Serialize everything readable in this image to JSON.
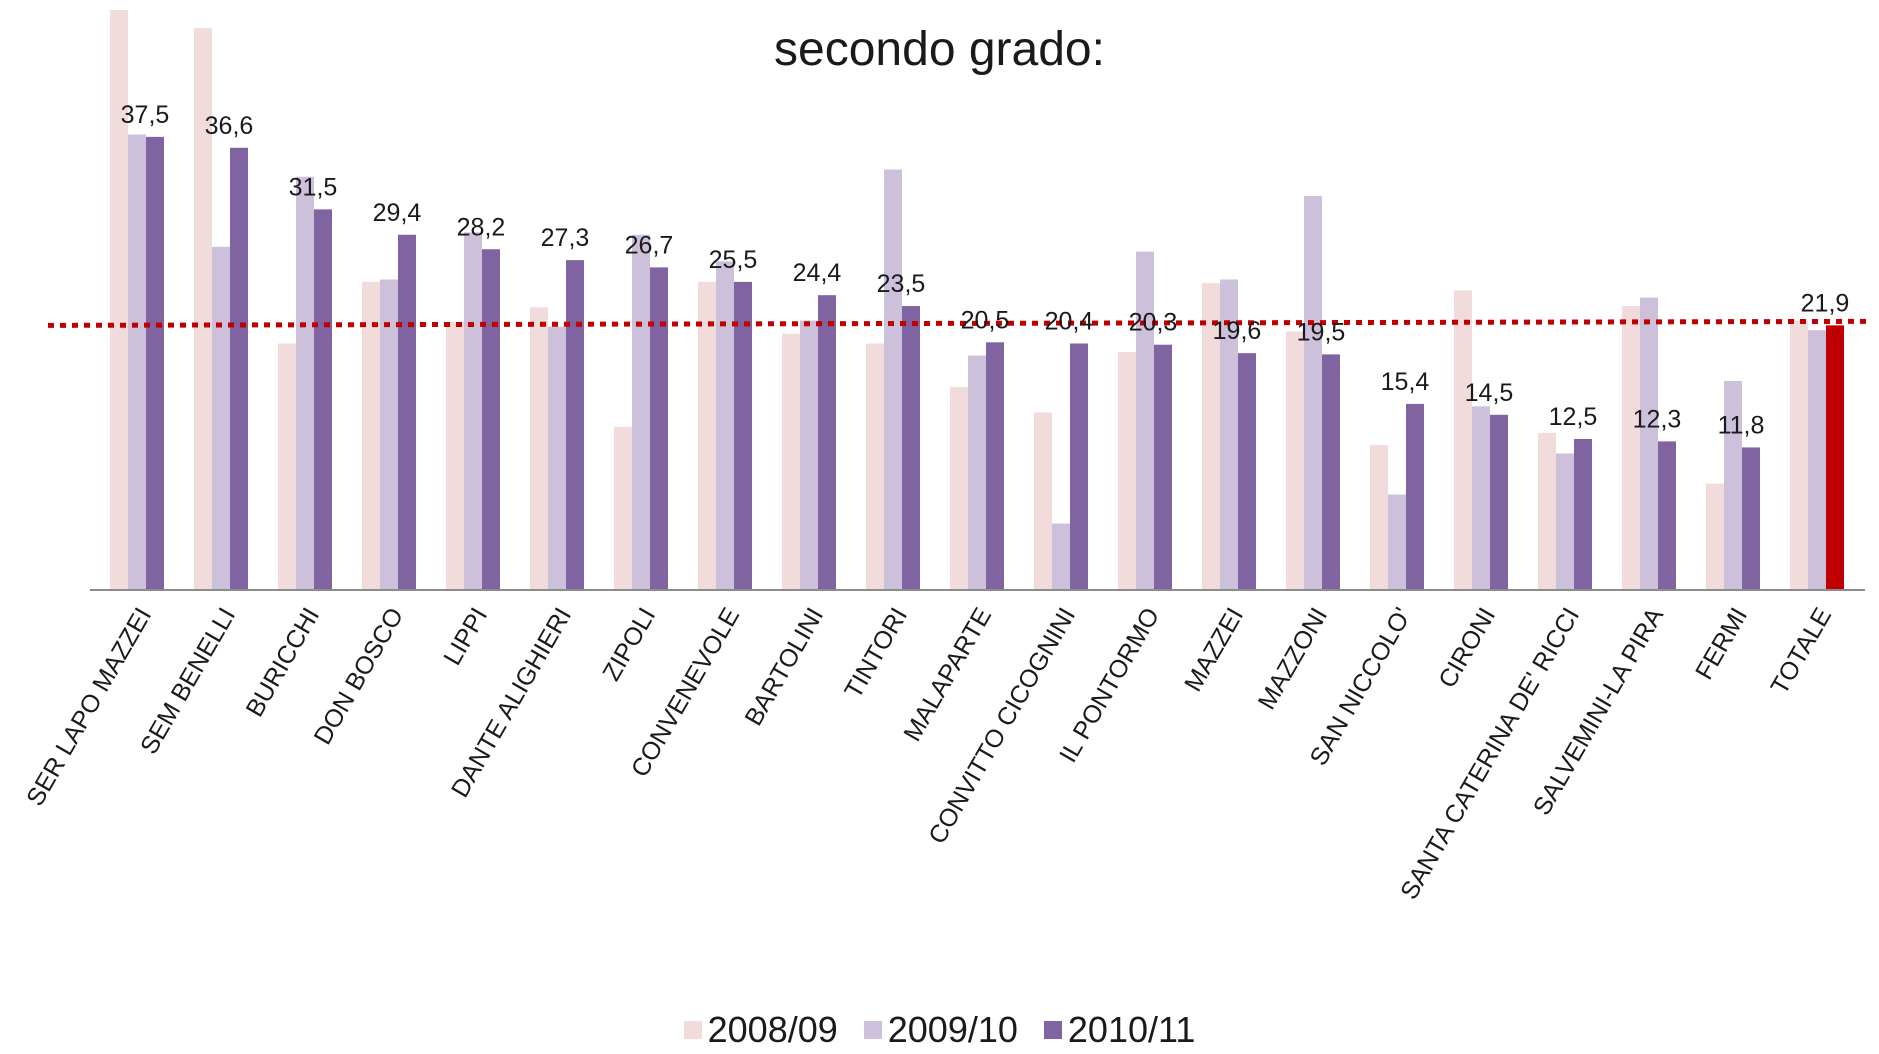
{
  "chart_data": {
    "type": "bar",
    "title": "secondo grado:",
    "categories": [
      "SER LAPO MAZZEI",
      "SEM BENELLI",
      "BURICCHI",
      "DON BOSCO",
      "LIPPI",
      "DANTE ALIGHIERI",
      "ZIPOLI",
      "CONVENEVOLE",
      "BARTOLINI",
      "TINTORI",
      "MALAPARTE",
      "CONVITTO CICOGNINI",
      "IL PONTORMO",
      "MAZZEI",
      "MAZZONI",
      "SAN NICCOLO'",
      "CIRONI",
      "SANTA CATERINA DE' RICCI",
      "SALVEMINI-LA PIRA",
      "FERMI",
      "TOTALE"
    ],
    "series": [
      {
        "name": "2008/09",
        "values": [
          48.0,
          46.5,
          20.4,
          25.5,
          22.2,
          23.4,
          13.5,
          25.5,
          21.2,
          20.4,
          16.8,
          14.7,
          19.7,
          25.4,
          21.4,
          12.0,
          24.8,
          13.0,
          23.5,
          8.8,
          22.3
        ]
      },
      {
        "name": "2009/10",
        "values": [
          37.7,
          28.4,
          34.2,
          25.7,
          29.6,
          21.8,
          29.4,
          27.2,
          22.3,
          34.8,
          19.4,
          5.5,
          28.0,
          25.7,
          32.6,
          7.9,
          15.2,
          11.3,
          24.2,
          17.3,
          21.5
        ]
      },
      {
        "name": "2010/11",
        "values": [
          37.5,
          36.6,
          31.5,
          29.4,
          28.2,
          27.3,
          26.7,
          25.5,
          24.4,
          23.5,
          20.5,
          20.4,
          20.3,
          19.6,
          19.5,
          15.4,
          14.5,
          12.5,
          12.3,
          11.8,
          21.9
        ]
      }
    ],
    "data_labels": [
      "37,5",
      "36,6",
      "31,5",
      "29,4",
      "28,2",
      "27,3",
      "26,7",
      "25,5",
      "24,4",
      "23,5",
      "20,5",
      "20,4",
      "20,3",
      "19,6",
      "19,5",
      "15,4",
      "14,5",
      "12,5",
      "12,3",
      "11,8",
      "21,9"
    ],
    "reference_line": 21.9,
    "highlight_category": "TOTALE",
    "xlabel": "",
    "ylabel": "",
    "ylim": [
      0,
      48
    ],
    "grid": false,
    "legend_position": "bottom",
    "colors": {
      "2008/09": "#f2dcdb",
      "2009/10": "#ccc0da",
      "2010/11": "#8064a2",
      "highlight": "#c00000",
      "reference_line": "#c00000"
    }
  }
}
